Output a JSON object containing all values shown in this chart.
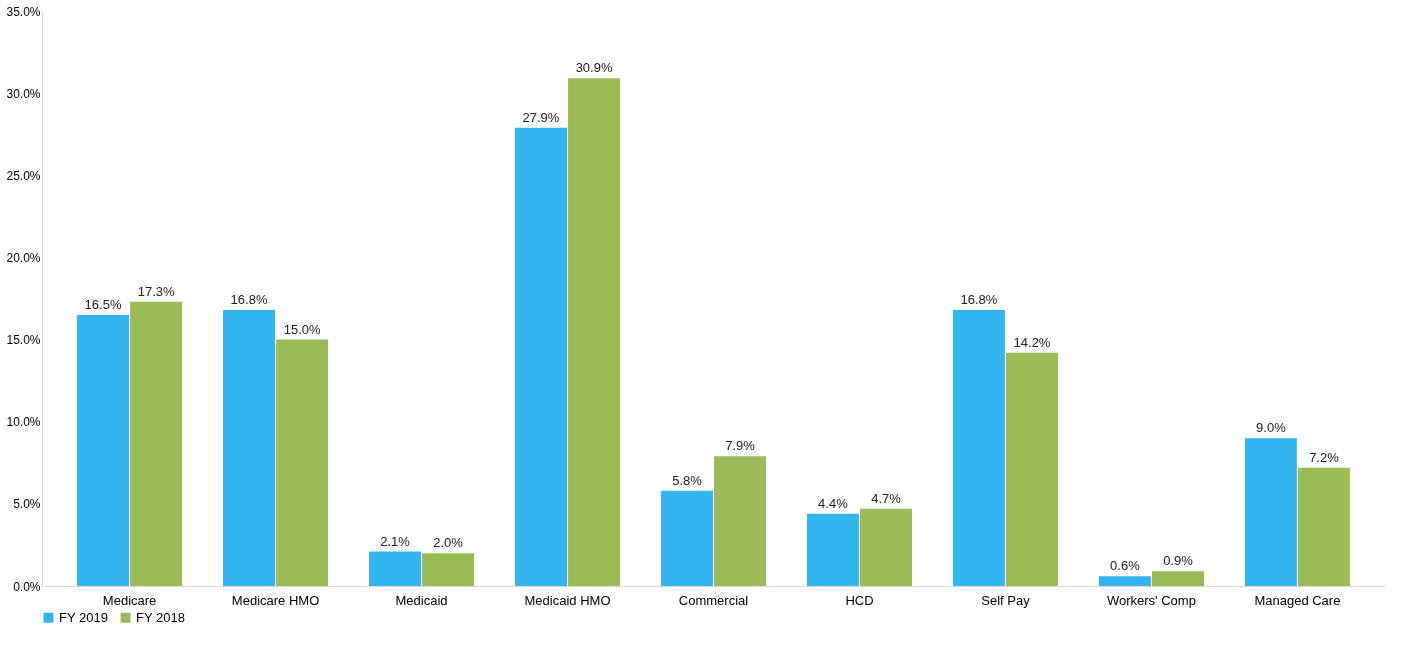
{
  "chart_data": {
    "type": "bar",
    "categories": [
      "Medicare",
      "Medicare HMO",
      "Medicaid",
      "Medicaid HMO",
      "Commercial",
      "HCD",
      "Self Pay",
      "Workers' Comp",
      "Managed Care"
    ],
    "series": [
      {
        "name": "FY 2019",
        "color": "#35b5f0",
        "values": [
          16.5,
          16.8,
          2.1,
          27.9,
          5.8,
          4.4,
          16.8,
          0.6,
          9.0
        ],
        "value_labels": [
          "16.5%",
          "16.8%",
          "2.1%",
          "27.9%",
          "5.8%",
          "4.4%",
          "16.8%",
          "0.6%",
          "9.0%"
        ]
      },
      {
        "name": "FY 2018",
        "color": "#9bbb59",
        "values": [
          17.3,
          15.0,
          2.0,
          30.9,
          7.9,
          4.7,
          14.2,
          0.9,
          7.2
        ],
        "value_labels": [
          "17.3%",
          "15.0%",
          "2.0%",
          "30.9%",
          "7.9%",
          "4.7%",
          "14.2%",
          "0.9%",
          "7.2%"
        ]
      }
    ],
    "ylim": [
      0,
      35
    ],
    "yticks": [
      {
        "value": 0,
        "label": "0.0%"
      },
      {
        "value": 5,
        "label": "5.0%"
      },
      {
        "value": 10,
        "label": "10.0%"
      },
      {
        "value": 15,
        "label": "15.0%"
      },
      {
        "value": 20,
        "label": "20.0%"
      },
      {
        "value": 25,
        "label": "25.0%"
      },
      {
        "value": 30,
        "label": "30.0%"
      },
      {
        "value": 35,
        "label": "35.0%"
      }
    ],
    "grid": false,
    "legend": "bottom"
  }
}
